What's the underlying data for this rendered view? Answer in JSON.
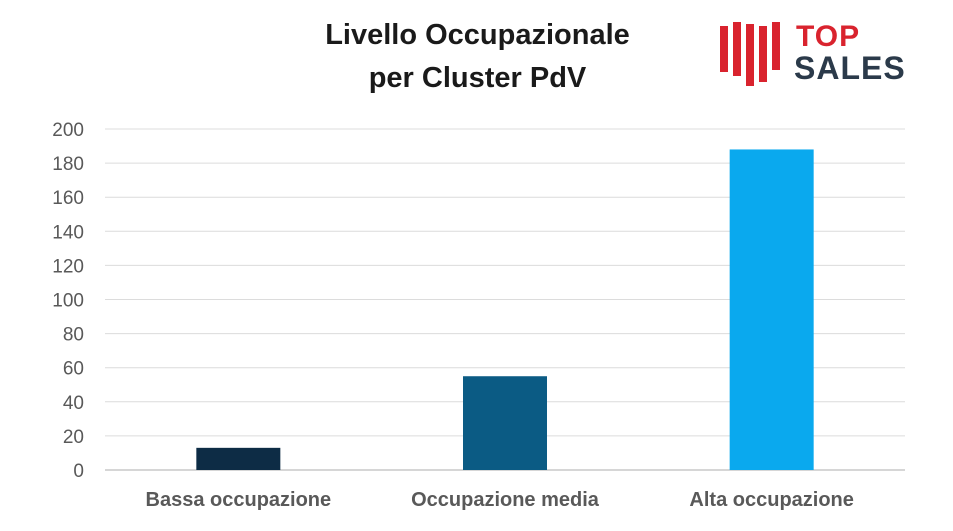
{
  "chart_data": {
    "type": "bar",
    "title_lines": [
      "Livello Occupazionale",
      "per Cluster PdV"
    ],
    "categories": [
      "Bassa occupazione",
      "Occupazione media",
      "Alta occupazione"
    ],
    "values": [
      13,
      55,
      188
    ],
    "colors": [
      "#0d2c45",
      "#0b5b84",
      "#0aa9ee"
    ],
    "ylim": [
      0,
      200
    ],
    "yticks": [
      0,
      20,
      40,
      60,
      80,
      100,
      120,
      140,
      160,
      180,
      200
    ],
    "grid": true,
    "xlabel": "",
    "ylabel": ""
  },
  "logo": {
    "line1": "TOP",
    "line2": "SALES",
    "red": "#d9232e",
    "dark": "#2b3a4a"
  }
}
